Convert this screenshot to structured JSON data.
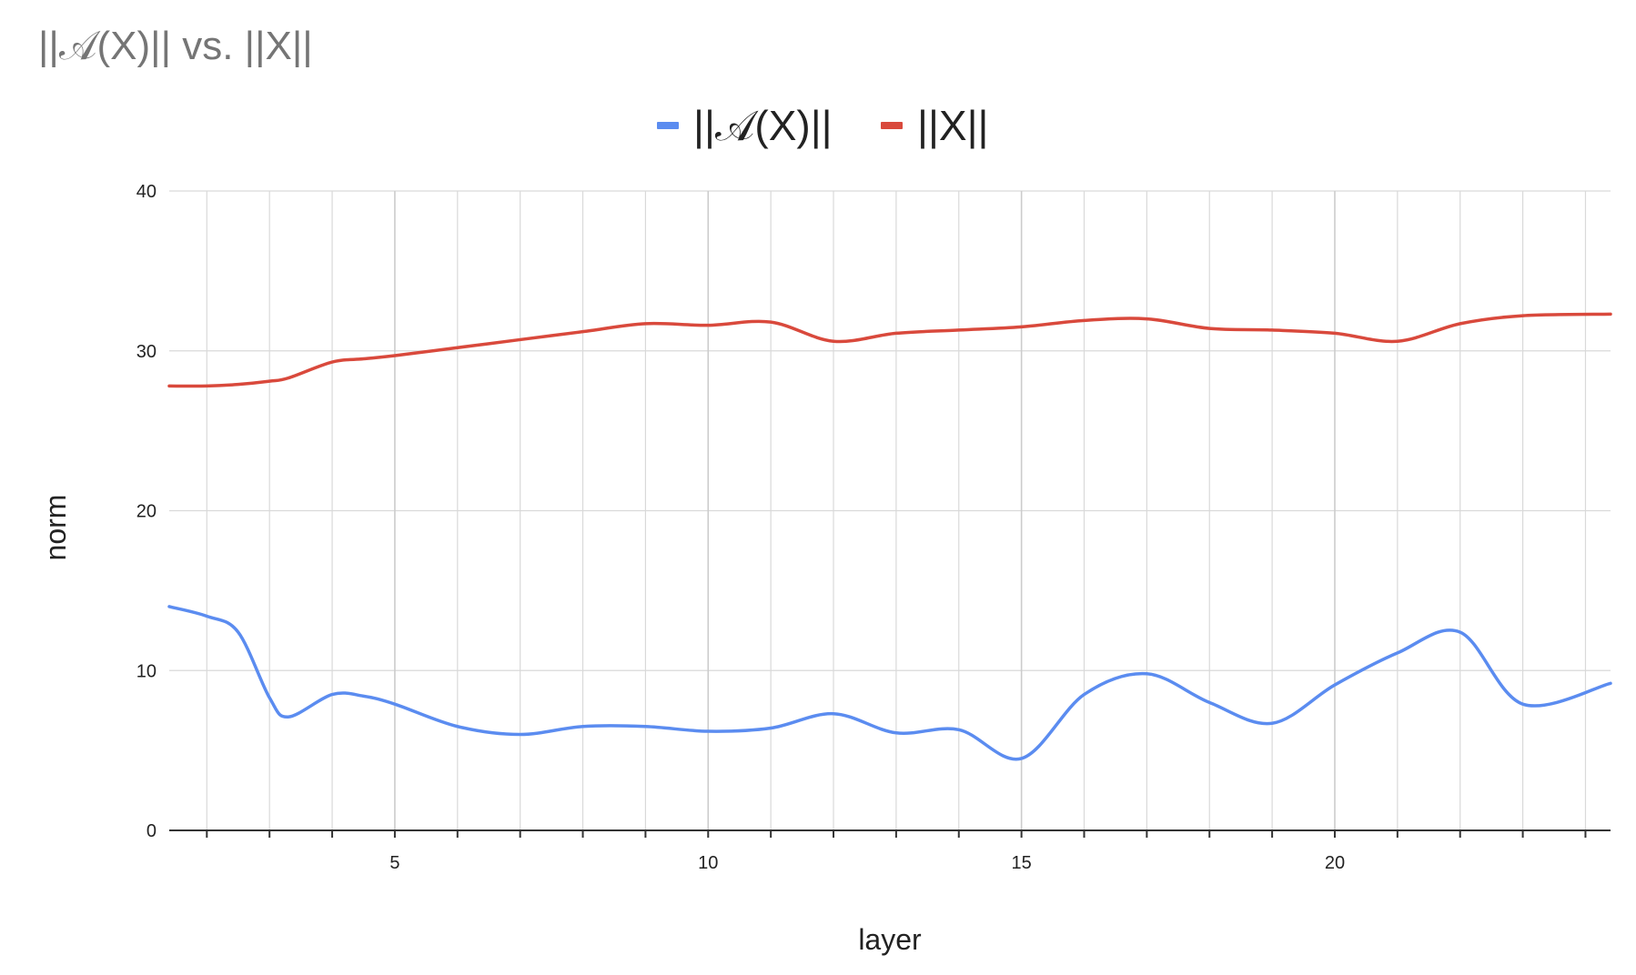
{
  "chart_data": {
    "type": "line",
    "title": "||𝒜(X)||  vs. ||X||",
    "xlabel": "layer",
    "ylabel": "norm",
    "xlim": [
      1.4,
      24.4
    ],
    "ylim": [
      0,
      40
    ],
    "x_ticks": [
      5,
      10,
      15,
      20
    ],
    "x_minor": [
      2,
      3,
      4,
      6,
      7,
      8,
      9,
      11,
      12,
      13,
      14,
      16,
      17,
      18,
      19,
      21,
      22,
      23,
      24
    ],
    "y_ticks": [
      0,
      10,
      20,
      30,
      40
    ],
    "grid": true,
    "legend_position": "top-center",
    "x": [
      1.4,
      2,
      2.5,
      3,
      3.3,
      4,
      4.5,
      5,
      6,
      7,
      8,
      9,
      10,
      11,
      12,
      13,
      14,
      15,
      16,
      17,
      18,
      19,
      20,
      21,
      22,
      23,
      24.4
    ],
    "series": [
      {
        "name": "||𝒜(X)||",
        "color": "#5b8cf0",
        "values": [
          14.0,
          13.4,
          12.4,
          8.3,
          7.1,
          8.5,
          8.4,
          7.9,
          6.5,
          6.0,
          6.5,
          6.5,
          6.2,
          6.4,
          7.3,
          6.1,
          6.3,
          4.5,
          8.5,
          9.8,
          8.0,
          6.7,
          9.1,
          11.1,
          12.4,
          7.9,
          9.2
        ]
      },
      {
        "name": "||X||",
        "color": "#d9493c",
        "values": [
          27.8,
          27.8,
          27.9,
          28.1,
          28.3,
          29.3,
          29.5,
          29.7,
          30.2,
          30.7,
          31.2,
          31.7,
          31.6,
          31.8,
          30.6,
          31.1,
          31.3,
          31.5,
          31.9,
          32.0,
          31.4,
          31.3,
          31.1,
          30.6,
          31.7,
          32.2,
          32.3
        ]
      }
    ]
  }
}
